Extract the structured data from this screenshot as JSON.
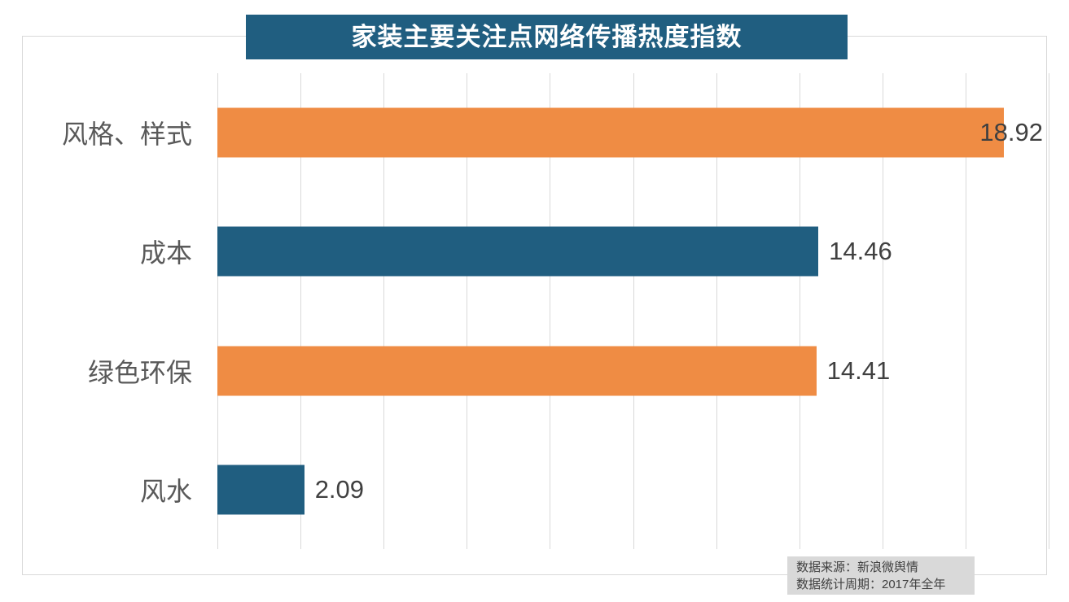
{
  "title": "家装主要关注点网络传播热度指数",
  "colors": {
    "title_bg": "#205E80",
    "bar_teal": "#205E80",
    "bar_orange": "#EF8C44",
    "grid": "#D9D9D9",
    "frame_border": "#D9D9D9",
    "category_text": "#595959",
    "value_text": "#404040",
    "source_bg": "#D9D9D9",
    "source_text": "#404040",
    "title_text": "#FFFFFF"
  },
  "source": {
    "line1": "数据来源：新浪微舆情",
    "line2": "数据统计周期：2017年全年"
  },
  "chart_data": {
    "type": "bar",
    "orientation": "horizontal",
    "title": "家装主要关注点网络传播热度指数",
    "categories": [
      "风格、样式",
      "成本",
      "绿色环保",
      "风水"
    ],
    "values": [
      18.92,
      14.46,
      14.41,
      2.09
    ],
    "bar_colors": [
      "#EF8C44",
      "#205E80",
      "#EF8C44",
      "#205E80"
    ],
    "xlabel": "",
    "ylabel": "",
    "xlim": [
      0,
      20
    ],
    "grid_step": 2,
    "grid": true,
    "legend": false,
    "data_labels": true,
    "value_decimals": 2
  }
}
